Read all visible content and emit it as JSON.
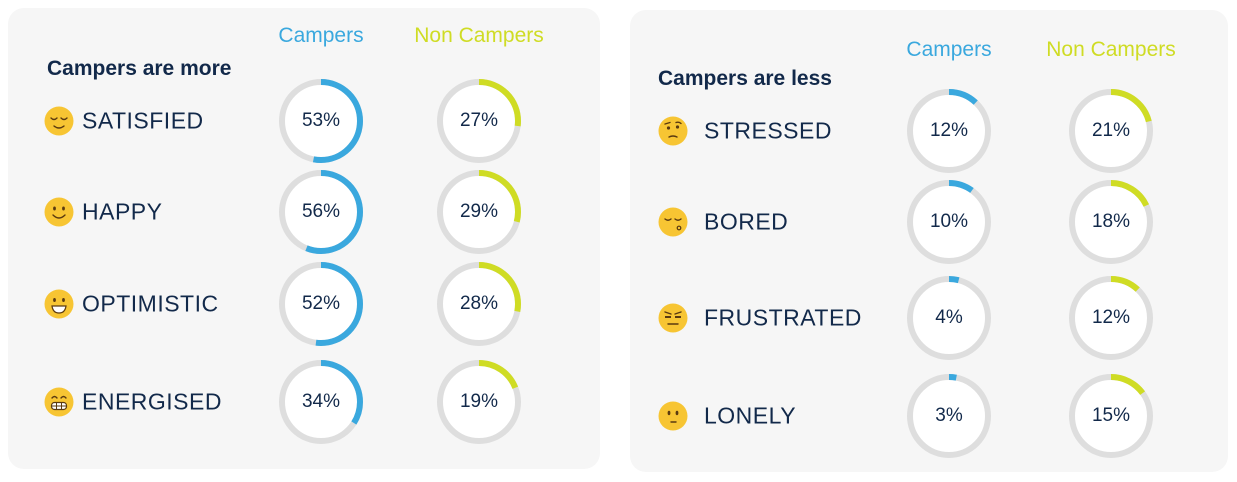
{
  "colors": {
    "campers": "#3aa8de",
    "non_campers": "#cfdc24",
    "track": "#dedede",
    "text": "#12294a",
    "emoji_face": "#f7c533",
    "emoji_line": "#5a3a10"
  },
  "chart_data": [
    {
      "type": "donut",
      "title": "Campers are more",
      "series_names": [
        "Campers",
        "Non Campers"
      ],
      "rows": [
        {
          "label": "SATISFIED",
          "icon": "relieved-face-icon",
          "campers": 53,
          "non_campers": 27
        },
        {
          "label": "HAPPY",
          "icon": "smiling-face-icon",
          "campers": 56,
          "non_campers": 29
        },
        {
          "label": "OPTIMISTIC",
          "icon": "grinning-face-icon",
          "campers": 52,
          "non_campers": 28
        },
        {
          "label": "ENERGISED",
          "icon": "grimacing-face-icon",
          "campers": 34,
          "non_campers": 19
        }
      ]
    },
    {
      "type": "donut",
      "title": "Campers are less",
      "series_names": [
        "Campers",
        "Non Campers"
      ],
      "rows": [
        {
          "label": "STRESSED",
          "icon": "raised-eyebrow-face-icon",
          "campers": 12,
          "non_campers": 21
        },
        {
          "label": "BORED",
          "icon": "pensive-face-icon",
          "campers": 10,
          "non_campers": 18
        },
        {
          "label": "FRUSTRATED",
          "icon": "unamused-face-icon",
          "campers": 4,
          "non_campers": 12
        },
        {
          "label": "LONELY",
          "icon": "worried-face-icon",
          "campers": 3,
          "non_campers": 15
        }
      ]
    }
  ]
}
